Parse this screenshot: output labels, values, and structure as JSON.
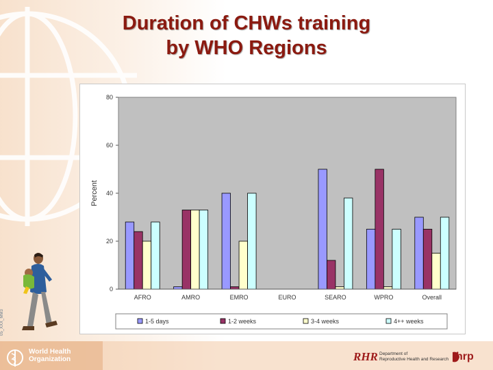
{
  "slide": {
    "title_line1": "Duration of CHWs training",
    "title_line2": "by WHO Regions",
    "slide_id": "05_XXX_MM3"
  },
  "footer": {
    "who_line1": "World Health",
    "who_line2": "Organization",
    "rhr_logo": "RHR",
    "rhr_dept_line1": "Department of",
    "rhr_dept_line2": "Reproductive Health and Research",
    "hrp_logo": "hrp"
  },
  "chart_data": {
    "type": "bar",
    "title": "",
    "xlabel": "",
    "ylabel": "Percent",
    "ylim": [
      0,
      80
    ],
    "yticks": [
      0,
      20,
      40,
      60,
      80
    ],
    "grid": false,
    "legend_position": "bottom",
    "plot_background": "#c0c0c0",
    "categories": [
      "AFRO",
      "AMRO",
      "EMRO",
      "EURO",
      "SEARO",
      "WPRO",
      "Overall"
    ],
    "series": [
      {
        "name": "1-5 days",
        "color": "#9999ff",
        "values": [
          28,
          1,
          40,
          0,
          50,
          25,
          30
        ]
      },
      {
        "name": "1-2 weeks",
        "color": "#993366",
        "values": [
          24,
          33,
          1,
          0,
          12,
          50,
          25
        ]
      },
      {
        "name": "3-4 weeks",
        "color": "#ffffcc",
        "values": [
          20,
          33,
          20,
          0,
          1,
          1,
          15
        ]
      },
      {
        "name": "4++ weeks",
        "color": "#ccffff",
        "values": [
          28,
          33,
          40,
          0,
          38,
          25,
          30
        ]
      }
    ]
  }
}
